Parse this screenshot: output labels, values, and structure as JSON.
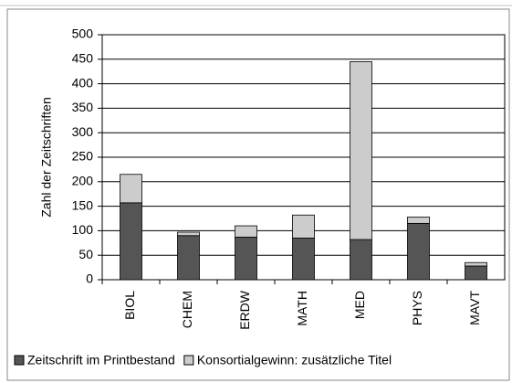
{
  "chart_data": {
    "type": "stacked_bar",
    "y_label": "Zahl der Zeitschriften",
    "categories": [
      "BIOL",
      "CHEM",
      "ERDW",
      "MATH",
      "MED",
      "PHYS",
      "MAVT"
    ],
    "series": [
      {
        "name": "Zeitschrift im Printbestand",
        "color": "#555555",
        "values": [
          157,
          90,
          87,
          85,
          82,
          115,
          28
        ]
      },
      {
        "name": "Konsortialgewinn: zusätzliche Titel",
        "color": "#cccccc",
        "values": [
          58,
          7,
          23,
          47,
          363,
          13,
          7
        ]
      }
    ],
    "ylim": [
      0,
      500
    ],
    "yticks": [
      0,
      50,
      100,
      150,
      200,
      250,
      300,
      350,
      400,
      450,
      500
    ],
    "grid": true,
    "legend": "bottom"
  }
}
